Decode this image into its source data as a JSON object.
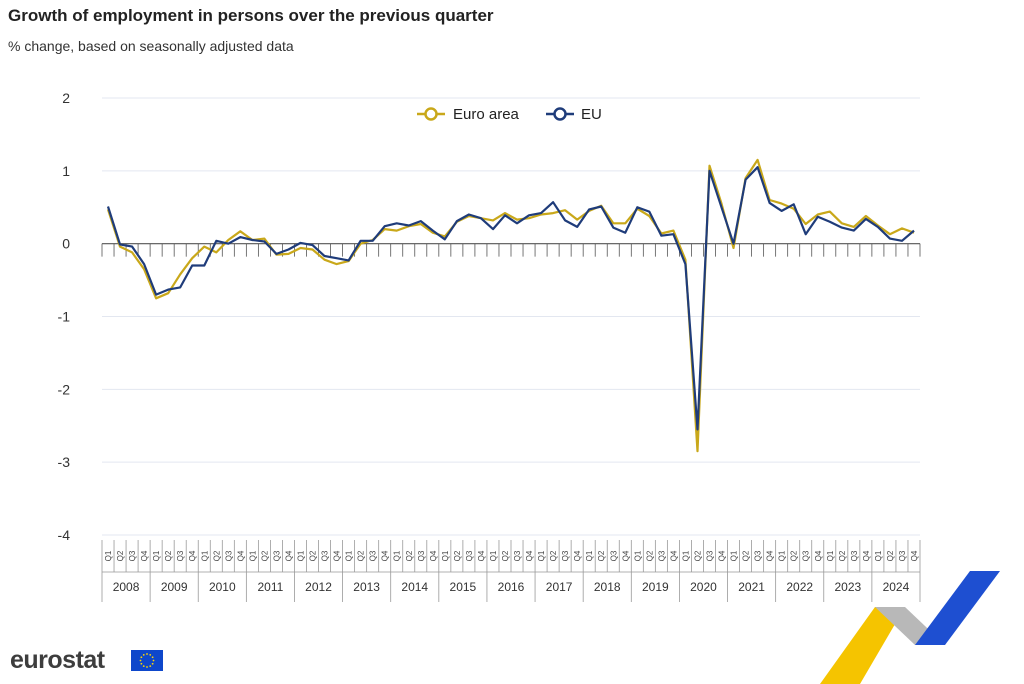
{
  "header": {
    "title": "Growth of employment in persons over the previous quarter",
    "subtitle": "% change, based on seasonally adjusted data"
  },
  "footer": {
    "logo_text": "eurostat"
  },
  "colors": {
    "euro_area": "#c9a81a",
    "eu": "#1f3c7a",
    "grid": "#e3e7f0"
  },
  "chart_data": {
    "type": "line",
    "ylim": [
      -4,
      2
    ],
    "yticks": [
      2,
      1,
      0,
      -1,
      -2,
      -3,
      -4
    ],
    "years": [
      "2008",
      "2009",
      "2010",
      "2011",
      "2012",
      "2013",
      "2014",
      "2015",
      "2016",
      "2017",
      "2018",
      "2019",
      "2020",
      "2021",
      "2022",
      "2023",
      "2024"
    ],
    "quarters": [
      "Q1",
      "Q2",
      "Q3",
      "Q4"
    ],
    "legend_position": "top-center",
    "series": [
      {
        "name": "Euro area",
        "color": "#c9a81a",
        "values": [
          0.47,
          -0.04,
          -0.12,
          -0.35,
          -0.75,
          -0.68,
          -0.42,
          -0.2,
          -0.04,
          -0.12,
          0.05,
          0.17,
          0.05,
          0.07,
          -0.15,
          -0.14,
          -0.06,
          -0.08,
          -0.22,
          -0.28,
          -0.24,
          0.0,
          0.05,
          0.2,
          0.18,
          0.24,
          0.27,
          0.15,
          0.1,
          0.3,
          0.38,
          0.35,
          0.32,
          0.42,
          0.33,
          0.35,
          0.4,
          0.42,
          0.46,
          0.33,
          0.45,
          0.52,
          0.28,
          0.28,
          0.48,
          0.38,
          0.14,
          0.18,
          -0.22,
          -2.85,
          1.07,
          0.55,
          -0.06,
          0.9,
          1.15,
          0.6,
          0.55,
          0.48,
          0.27,
          0.4,
          0.44,
          0.28,
          0.23,
          0.38,
          0.25,
          0.13,
          0.21,
          0.15
        ]
      },
      {
        "name": "EU",
        "color": "#1f3c7a",
        "values": [
          0.51,
          -0.01,
          -0.04,
          -0.28,
          -0.7,
          -0.63,
          -0.6,
          -0.3,
          -0.3,
          0.04,
          0.0,
          0.09,
          0.05,
          0.03,
          -0.14,
          -0.08,
          0.01,
          -0.02,
          -0.17,
          -0.2,
          -0.23,
          0.04,
          0.04,
          0.24,
          0.28,
          0.25,
          0.31,
          0.18,
          0.06,
          0.31,
          0.4,
          0.35,
          0.2,
          0.39,
          0.28,
          0.39,
          0.42,
          0.57,
          0.32,
          0.23,
          0.47,
          0.51,
          0.22,
          0.15,
          0.5,
          0.44,
          0.11,
          0.13,
          -0.28,
          -2.55,
          1.0,
          0.5,
          0.0,
          0.88,
          1.05,
          0.56,
          0.45,
          0.54,
          0.13,
          0.37,
          0.3,
          0.22,
          0.18,
          0.34,
          0.23,
          0.07,
          0.04,
          0.18
        ]
      }
    ]
  }
}
